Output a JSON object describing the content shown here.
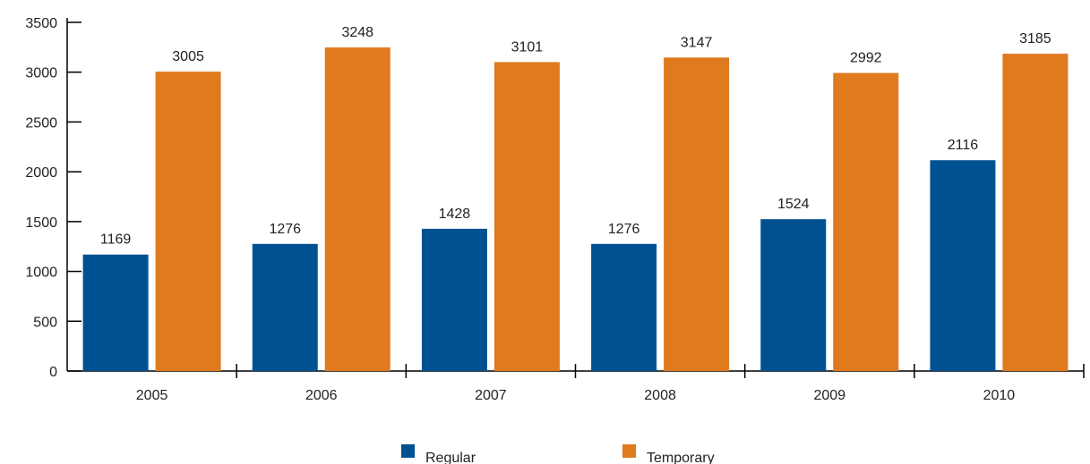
{
  "chart_data": {
    "type": "bar",
    "categories": [
      "2005",
      "2006",
      "2007",
      "2008",
      "2009",
      "2010"
    ],
    "series": [
      {
        "name": "Regular",
        "color": "#005192",
        "values": [
          1169,
          1276,
          1428,
          1276,
          1524,
          2116
        ]
      },
      {
        "name": "Temporary",
        "color": "#df7a1e",
        "values": [
          3005,
          3248,
          3101,
          3147,
          2992,
          3185
        ]
      }
    ],
    "ylim": [
      0,
      3500
    ],
    "yticks": [
      0,
      500,
      1000,
      1500,
      2000,
      2500,
      3000,
      3500
    ],
    "title": "",
    "xlabel": "",
    "ylabel": "",
    "grid": false,
    "legend_position": "bottom-center",
    "data_labels": true
  }
}
